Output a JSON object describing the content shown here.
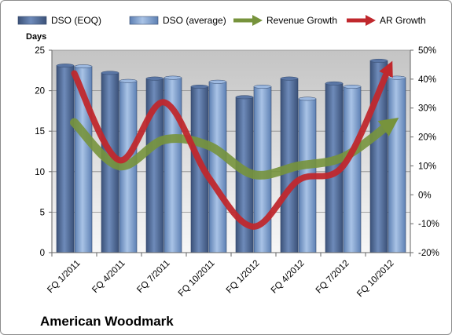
{
  "chart_data": {
    "type": "bar",
    "title": "American Woodmark",
    "categories": [
      "FQ 1/2011",
      "FQ 4/2011",
      "FQ 7/2011",
      "FQ 10/2011",
      "FQ 1/2012",
      "FQ 4/2012",
      "FQ 7/2012",
      "FQ 10/2012"
    ],
    "ylabel": "Days",
    "ylim": [
      0,
      25
    ],
    "yticks": [
      0,
      5,
      10,
      15,
      20,
      25
    ],
    "y2lim": [
      -0.2,
      0.5
    ],
    "y2ticks": [
      "-20%",
      "-10%",
      "0%",
      "10%",
      "20%",
      "30%",
      "40%",
      "50%"
    ],
    "series": [
      {
        "name": "DSO (EOQ)",
        "type": "bar",
        "axis": "left",
        "color": "#4f6b98",
        "values": [
          23.1,
          22.2,
          21.5,
          20.5,
          19.2,
          21.5,
          20.9,
          23.7
        ]
      },
      {
        "name": "DSO (average)",
        "type": "bar",
        "axis": "left",
        "color": "#7a9fd0",
        "values": [
          23.0,
          21.2,
          21.6,
          21.1,
          20.5,
          19.0,
          20.5,
          21.6
        ]
      },
      {
        "name": "Revenue Growth",
        "type": "line",
        "axis": "right",
        "color": "#77933c",
        "values": [
          0.25,
          0.1,
          0.19,
          0.17,
          0.07,
          0.1,
          0.13,
          0.24
        ]
      },
      {
        "name": "AR Growth",
        "type": "line",
        "axis": "right",
        "color": "#c0282d",
        "values": [
          0.42,
          0.12,
          0.32,
          0.06,
          -0.11,
          0.05,
          0.1,
          0.43
        ]
      }
    ],
    "grid": true,
    "legend": "top"
  }
}
